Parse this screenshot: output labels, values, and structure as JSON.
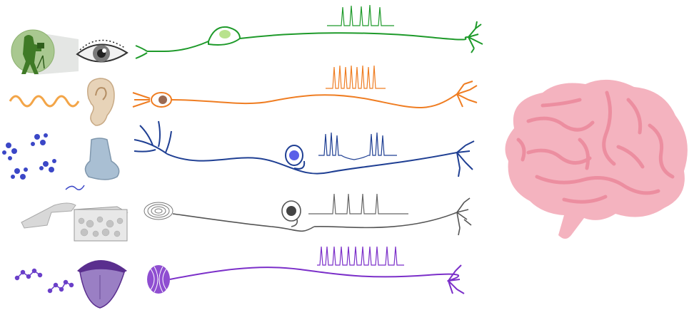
{
  "figure": {
    "background": "#ffffff",
    "pathways": [
      {
        "sense": "vision",
        "stimulus": "camera-photograph",
        "organ": "eye",
        "color": "#1e9a2a",
        "receptor": "bipolar-retinal-neuron"
      },
      {
        "sense": "hearing",
        "stimulus": "sound-wave",
        "organ": "ear",
        "color": "#ef7d22",
        "receptor": "auditory-neuron"
      },
      {
        "sense": "smell",
        "stimulus": "odor-molecules",
        "organ": "nose",
        "color": "#1f3f93",
        "receptor": "olfactory-neuron"
      },
      {
        "sense": "touch",
        "stimulus": "finger-on-skin",
        "organ": "skin",
        "color": "#555555",
        "receptor": "pseudounipolar-neuron"
      },
      {
        "sense": "taste",
        "stimulus": "taste-molecules",
        "organ": "mouth",
        "color": "#7b2fc9",
        "receptor": "taste-bud"
      }
    ],
    "target": {
      "name": "brain",
      "color": "#f4b3bf",
      "fold_color": "#ec8ea0"
    }
  }
}
